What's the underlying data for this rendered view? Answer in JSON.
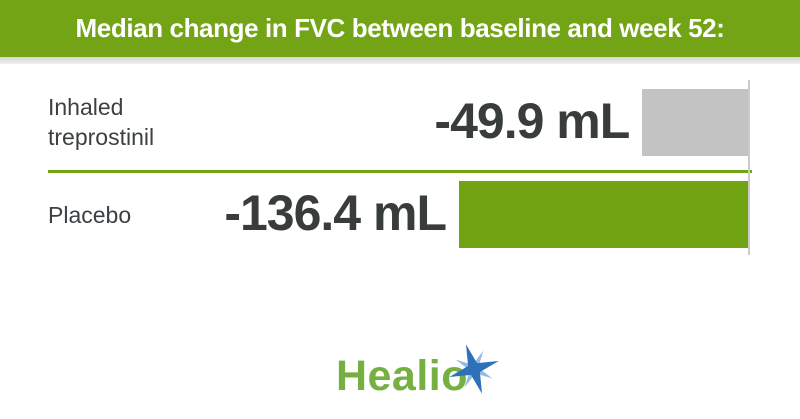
{
  "header": {
    "title": "Median change in FVC between baseline and week 52:"
  },
  "chart_data": {
    "type": "bar",
    "orientation": "horizontal",
    "title": "Median change in FVC between baseline and week 52:",
    "unit": "mL",
    "categories": [
      "Inhaled treprostinil",
      "Placebo"
    ],
    "values": [
      -49.9,
      -136.4
    ],
    "value_labels": [
      "-49.9 mL",
      "-136.4 mL"
    ],
    "bar_colors": [
      "#c3c3c3",
      "#71a313"
    ],
    "axis": {
      "zero_baseline_position": "right",
      "bars_extend": "leftward-negative",
      "gridlines": false,
      "tick_labels": []
    },
    "legend": null
  },
  "footer": {
    "logo_text": "Healio"
  },
  "colors": {
    "header_green": "#72a416",
    "bar_green": "#71a313",
    "bar_gray": "#c3c3c3",
    "separator_green": "#71a313",
    "value_text": "#383c3c",
    "label_text": "#3c4043",
    "logo_green": "#76b043",
    "logo_star_blue_dark": "#2e71b8",
    "logo_star_blue_light": "#8fbce6"
  }
}
